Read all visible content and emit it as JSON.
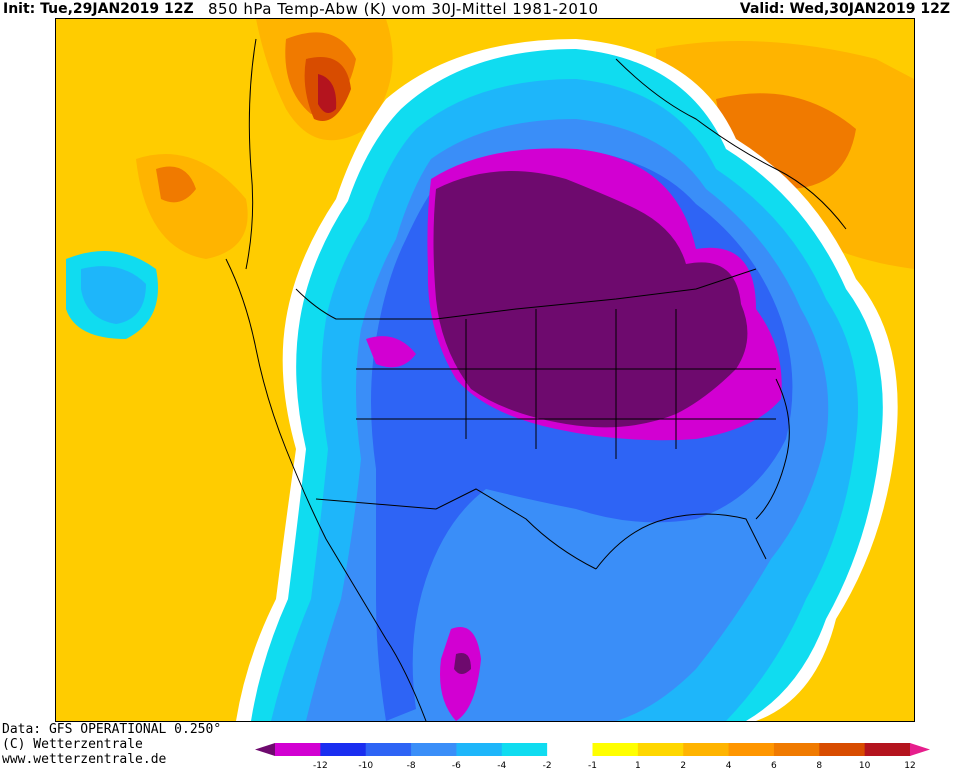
{
  "header": {
    "init": "Init: Tue,29JAN2019 12Z",
    "title": "850 hPa Temp-Abw (K) vom 30J-Mittel 1981-2010",
    "valid": "Valid: Wed,30JAN2019 12Z"
  },
  "credits": {
    "data_line": "Data: GFS OPERATIONAL 0.250°",
    "copyright": "(C) Wetterzentrale",
    "url": "www.wetterzentrale.de"
  },
  "legend": {
    "bins": [
      {
        "color": "#d200d2"
      },
      {
        "color": "#1a2ef0"
      },
      {
        "color": "#2e64f5"
      },
      {
        "color": "#3a8ef8"
      },
      {
        "color": "#1eb6fa"
      },
      {
        "color": "#10dcf0"
      },
      {
        "color": "#ffffff"
      },
      {
        "color": "#ffff00"
      },
      {
        "color": "#ffd700"
      },
      {
        "color": "#ffb400"
      },
      {
        "color": "#ff9600"
      },
      {
        "color": "#f07a00"
      },
      {
        "color": "#d84c00"
      },
      {
        "color": "#b4141e"
      }
    ],
    "low_color": "#6e0a6e",
    "high_color": "#e61e8c",
    "tick_labels": [
      "-12",
      "-10",
      "-8",
      "-6",
      "-4",
      "-2",
      "-1",
      "1",
      "2",
      "4",
      "6",
      "8",
      "10",
      "12"
    ]
  },
  "map": {
    "colors": {
      "background": "#ffcc00",
      "cold_core": "#6e0a6e",
      "very_cold": "#d200d2",
      "cold": "#2e64f5",
      "cool": "#3a8ef8",
      "cool_light": "#1eb6fa",
      "mild_cool": "#10dcf0",
      "neutral": "#ffffff",
      "warm": "#ffb400",
      "warm_dark": "#f07a00",
      "hot": "#d84c00",
      "hottest": "#b4141e"
    }
  }
}
